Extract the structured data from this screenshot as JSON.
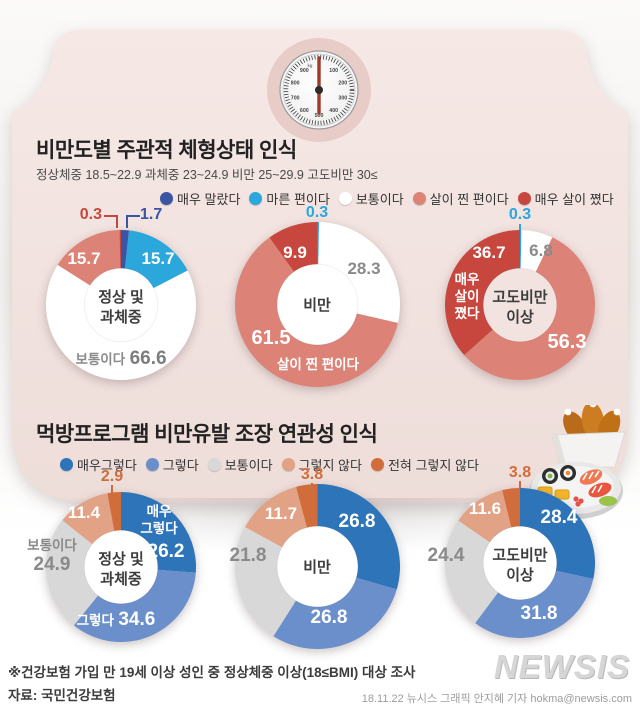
{
  "header": {
    "title": "비만도별 주관적 체형상태 인식",
    "subtitle": "정상체중 18.5~22.9 과체중 23~24.9 비만 25~29.9 고도비만 30≤"
  },
  "dial": {
    "unit": "kg",
    "labels": [
      "0",
      "100",
      "200",
      "300",
      "400",
      "500",
      "600",
      "700",
      "800",
      "900"
    ]
  },
  "s1": {
    "legend": [
      {
        "label": "매우 말랐다",
        "color": "#3a55a4"
      },
      {
        "label": "마른 편이다",
        "color": "#2ba7dc"
      },
      {
        "label": "보통이다",
        "color": "#ffffff"
      },
      {
        "label": "살이 찐 편이다",
        "color": "#dd8276"
      },
      {
        "label": "매우 살이 쪘다",
        "color": "#c7473e"
      }
    ],
    "charts": [
      {
        "group": "정상 및\n과체중",
        "hole": "#ffffff",
        "slices": [
          {
            "label": "매우 말랐다",
            "value": "1.7",
            "color": "#3a55a4"
          },
          {
            "label": "마른 편이다",
            "value": "15.7",
            "color": "#2ba7dc"
          },
          {
            "label": "보통이다",
            "value": "66.6",
            "color": "#ffffff"
          },
          {
            "label": "살이 찐 편이다",
            "value": "15.7",
            "color": "#dd8276"
          },
          {
            "label": "매우 살이 쪘다",
            "value": "0.3",
            "color": "#c7473e"
          }
        ]
      },
      {
        "group": "비만",
        "hole": "#ffffff",
        "slices": [
          {
            "label": "마른 편이다",
            "value": "0.3",
            "color": "#2ba7dc"
          },
          {
            "label": "보통이다",
            "value": "28.3",
            "color": "#ffffff"
          },
          {
            "label": "살이 찐 편이다",
            "value": "61.5",
            "color": "#dd8276"
          },
          {
            "label": "매우 살이 쪘다",
            "value": "9.9",
            "color": "#c7473e"
          }
        ]
      },
      {
        "group": "고도비만\n이상",
        "hole": "#f2e3e0",
        "slices": [
          {
            "label": "마른 편이다",
            "value": "0.3",
            "color": "#2ba7dc"
          },
          {
            "label": "보통이다",
            "value": "6.8",
            "color": "#ffffff"
          },
          {
            "label": "살이 찐 편이다",
            "value": "56.3",
            "color": "#dd8276"
          },
          {
            "label": "매우 살이 쪘다",
            "value": "36.7",
            "color": "#c7473e",
            "display": "매우\n살이\n쪘다"
          }
        ]
      }
    ]
  },
  "s2": {
    "title": "먹방프로그램 비만유발 조장 연관성 인식",
    "legend": [
      {
        "label": "매우그렇다",
        "color": "#2e74b8"
      },
      {
        "label": "그렇다",
        "color": "#6b8fcb"
      },
      {
        "label": "보통이다",
        "color": "#d8d8d8"
      },
      {
        "label": "그렇지 않다",
        "color": "#e2a285"
      },
      {
        "label": "전혀 그렇지 않다",
        "color": "#d16c3b"
      }
    ],
    "charts": [
      {
        "group": "정상 및\n과체중",
        "hole": "#ffffff",
        "slices": [
          {
            "label": "매우그렇다",
            "value": "26.2",
            "color": "#2e74b8",
            "display": "매우\n그렇다"
          },
          {
            "label": "그렇다",
            "value": "34.6",
            "color": "#6b8fcb"
          },
          {
            "label": "보통이다",
            "value": "24.9",
            "color": "#d8d8d8"
          },
          {
            "label": "그렇지 않다",
            "value": "11.4",
            "color": "#e2a285"
          },
          {
            "label": "전혀 그렇지 않다",
            "value": "2.9",
            "color": "#d16c3b"
          }
        ]
      },
      {
        "group": "비만",
        "hole": "#ffffff",
        "slices": [
          {
            "label": "매우그렇다",
            "value": "26.8",
            "color": "#2e74b8"
          },
          {
            "label": "그렇다",
            "value": "26.8",
            "color": "#6b8fcb"
          },
          {
            "label": "보통이다",
            "value": "21.8",
            "color": "#d8d8d8"
          },
          {
            "label": "그렇지 않다",
            "value": "11.7",
            "color": "#e2a285"
          },
          {
            "label": "전혀 그렇지 않다",
            "value": "3.8",
            "color": "#d16c3b"
          }
        ]
      },
      {
        "group": "고도비만\n이상",
        "hole": "#ffffff",
        "slices": [
          {
            "label": "매우그렇다",
            "value": "28.4",
            "color": "#2e74b8"
          },
          {
            "label": "그렇다",
            "value": "31.8",
            "color": "#6b8fcb"
          },
          {
            "label": "보통이다",
            "value": "24.4",
            "color": "#d8d8d8"
          },
          {
            "label": "그렇지 않다",
            "value": "11.6",
            "color": "#e2a285"
          },
          {
            "label": "전혀 그렇지 않다",
            "value": "3.8",
            "color": "#d16c3b"
          }
        ]
      }
    ]
  },
  "footer": {
    "note": "※건강보험 가입 만 19세 이상 성인 중 정상체중 이상(18≤BMI) 대상 조사",
    "source": "자료: 국민건강보험",
    "logo": "NEWSIS",
    "credit": "18.11.22 뉴시스 그래픽 안지혜 기자 hokma@newsis.com"
  },
  "chart_data": [
    {
      "type": "pie",
      "subtype": "donut-small-multiples",
      "title": "비만도별 주관적 체형상태 인식",
      "legend": [
        "매우 말랐다",
        "마른 편이다",
        "보통이다",
        "살이 찐 편이다",
        "매우 살이 쪘다"
      ],
      "legend_colors": [
        "#3a55a4",
        "#2ba7dc",
        "#ffffff",
        "#dd8276",
        "#c7473e"
      ],
      "charts": [
        {
          "group": "정상 및 과체중",
          "values": [
            1.7,
            15.7,
            66.6,
            15.7,
            0.3
          ]
        },
        {
          "group": "비만",
          "values": [
            0,
            0.3,
            28.3,
            61.5,
            9.9
          ]
        },
        {
          "group": "고도비만 이상",
          "values": [
            0,
            0.3,
            6.8,
            56.3,
            36.7
          ]
        }
      ]
    },
    {
      "type": "pie",
      "subtype": "donut-small-multiples",
      "title": "먹방프로그램 비만유발 조장 연관성 인식",
      "legend": [
        "매우그렇다",
        "그렇다",
        "보통이다",
        "그렇지 않다",
        "전혀 그렇지 않다"
      ],
      "legend_colors": [
        "#2e74b8",
        "#6b8fcb",
        "#d8d8d8",
        "#e2a285",
        "#d16c3b"
      ],
      "charts": [
        {
          "group": "정상 및 과체중",
          "values": [
            26.2,
            34.6,
            24.9,
            11.4,
            2.9
          ]
        },
        {
          "group": "비만",
          "values": [
            26.8,
            26.8,
            21.8,
            11.7,
            3.8
          ]
        },
        {
          "group": "고도비만 이상",
          "values": [
            28.4,
            31.8,
            24.4,
            11.6,
            3.8
          ]
        }
      ]
    }
  ]
}
